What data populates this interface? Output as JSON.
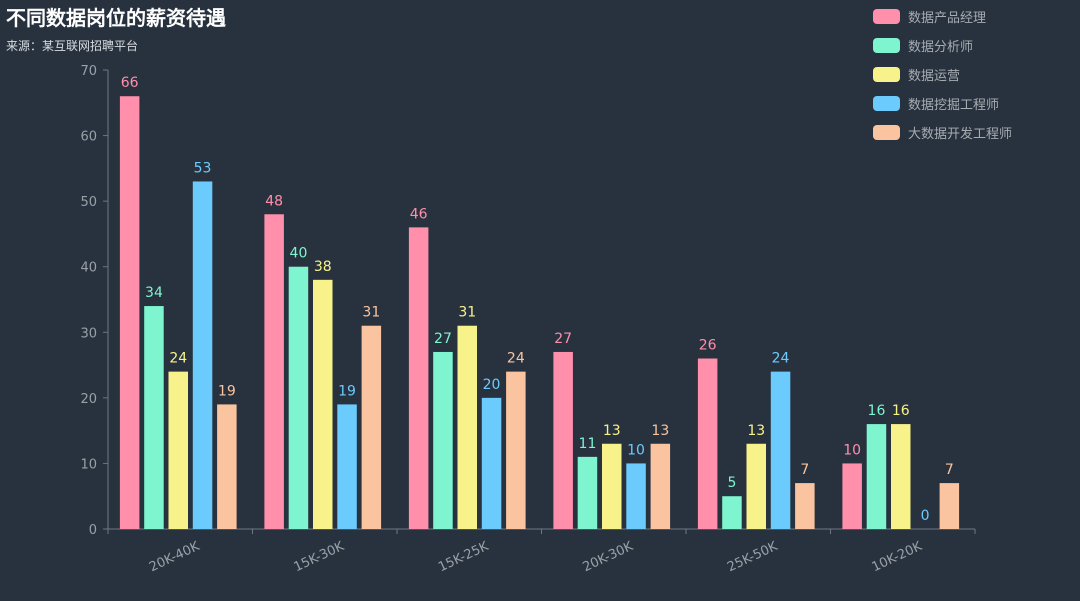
{
  "title": "不同数据岗位的薪资待遇",
  "subtitle": "来源：某互联网招聘平台",
  "colors": {
    "background": "#28323e",
    "axis": "#6e7681",
    "tick_label": "#9aa0a8",
    "series": [
      "#ff8fab",
      "#7ef5cf",
      "#f8f28a",
      "#6ccbfd",
      "#f9c49f"
    ]
  },
  "chart_data": {
    "type": "bar",
    "title": "不同数据岗位的薪资待遇",
    "subtitle": "来源：某互联网招聘平台",
    "categories": [
      "20K-40K",
      "15K-30K",
      "15K-25K",
      "20K-30K",
      "25K-50K",
      "10K-20K"
    ],
    "series": [
      {
        "name": "数据产品经理",
        "values": [
          66,
          48,
          46,
          27,
          26,
          10
        ]
      },
      {
        "name": "数据分析师",
        "values": [
          34,
          40,
          27,
          11,
          5,
          16
        ]
      },
      {
        "name": "数据运营",
        "values": [
          24,
          38,
          31,
          13,
          13,
          16
        ]
      },
      {
        "name": "数据挖掘工程师",
        "values": [
          53,
          19,
          20,
          10,
          24,
          0
        ]
      },
      {
        "name": "大数据开发工程师",
        "values": [
          19,
          31,
          24,
          13,
          7,
          7
        ]
      }
    ],
    "ylim": [
      0,
      70
    ],
    "yticks": [
      0,
      10,
      20,
      30,
      40,
      50,
      60,
      70
    ],
    "xlabel": "",
    "ylabel": "",
    "grid": false,
    "legend_position": "top-right"
  }
}
